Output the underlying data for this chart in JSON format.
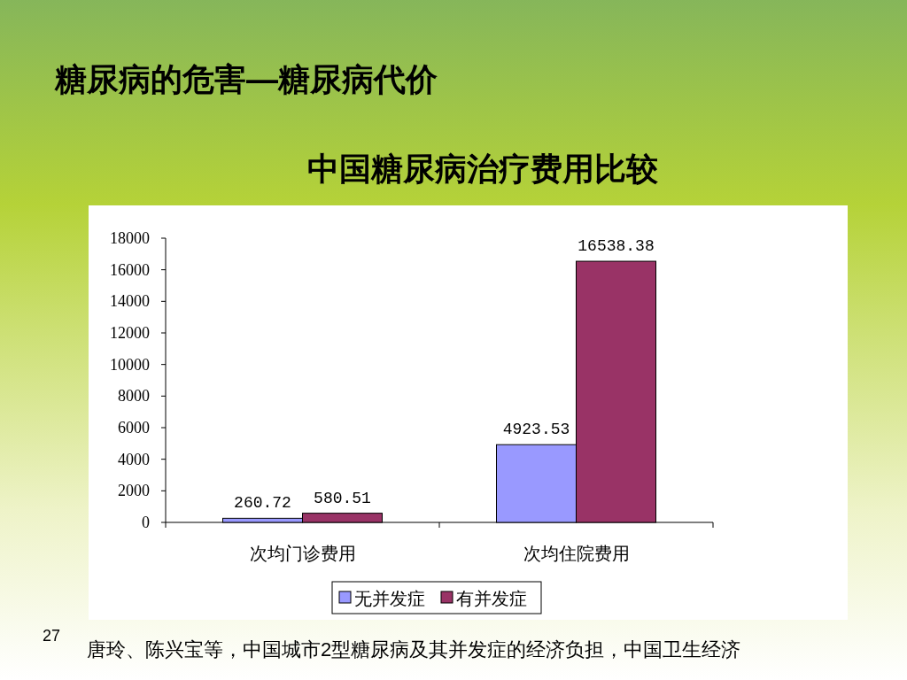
{
  "chart_data": {
    "type": "bar",
    "title": "糖尿病的危害—糖尿病代价",
    "subtitle": "中国糖尿病治疗费用比较",
    "categories": [
      "次均门诊费用",
      "次均住院费用"
    ],
    "series": [
      {
        "name": "无并发症",
        "color": "#9999ff",
        "values": [
          260.72,
          4923.53
        ]
      },
      {
        "name": "有并发症",
        "color": "#993366",
        "values": [
          580.51,
          16538.38
        ]
      }
    ],
    "ylim": [
      0,
      18000
    ],
    "yticks": [
      0,
      2000,
      4000,
      6000,
      8000,
      10000,
      12000,
      14000,
      16000,
      18000
    ],
    "data_labels": true,
    "legend": "bottom",
    "grid": false,
    "annotations": [
      "27",
      "唐玲、陈兴宝等，中国城市2型糖尿病及其并发症的经济负担，中国卫生经济"
    ]
  }
}
